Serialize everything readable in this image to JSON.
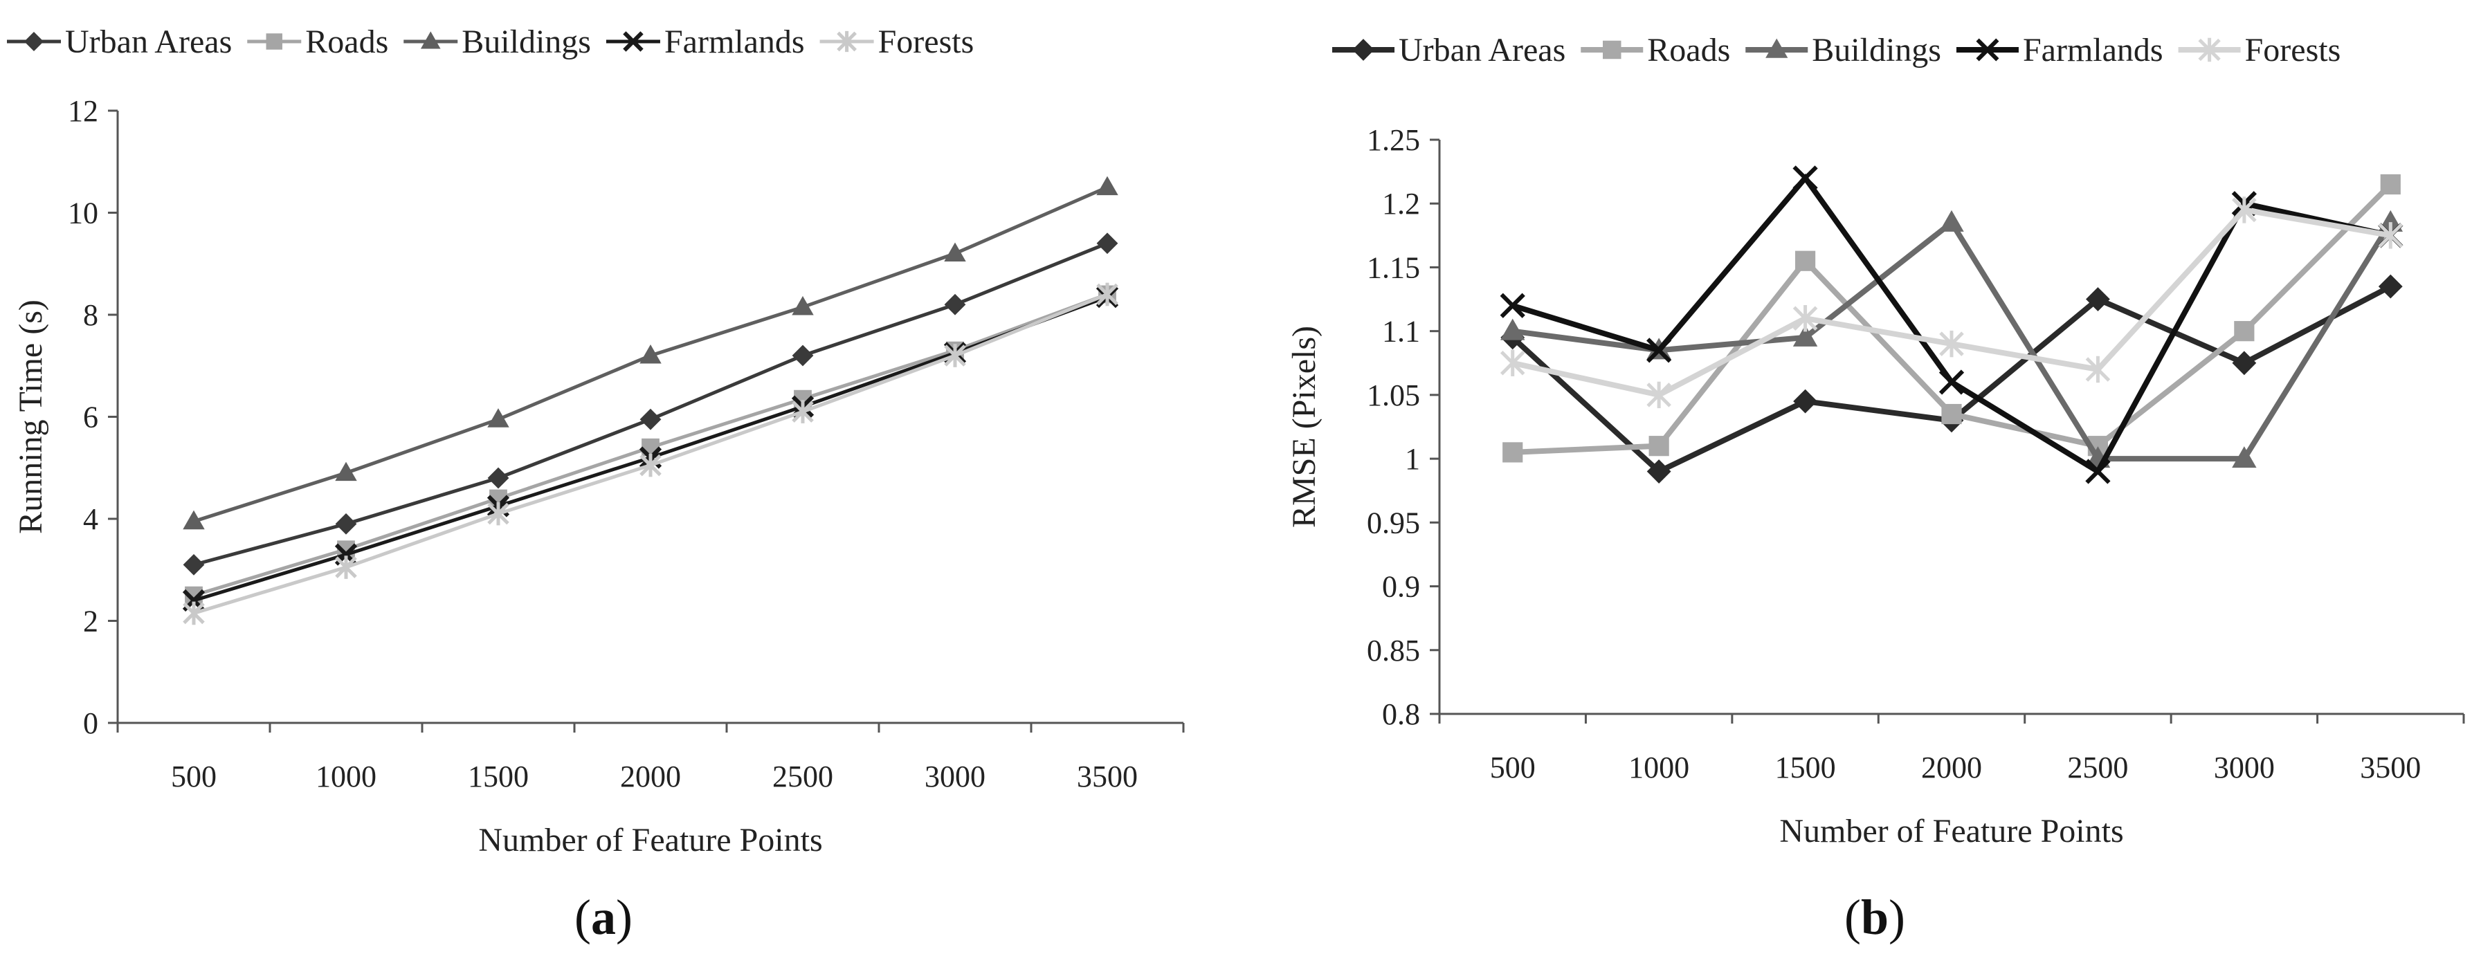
{
  "panel_labels": {
    "a": "a",
    "b": "b"
  },
  "chart_data": [
    {
      "type": "line",
      "panel": "a",
      "xlabel": "Number of Feature Points",
      "ylabel": "Running Time (s)",
      "x": [
        500,
        1000,
        1500,
        2000,
        2500,
        3000,
        3500
      ],
      "ylim": [
        0,
        12
      ],
      "yticks": [
        0,
        2,
        4,
        6,
        8,
        10,
        12
      ],
      "grid": false,
      "legend_position": "top",
      "series": [
        {
          "name": "Urban Areas",
          "marker": "diamond",
          "color": "#3a3a3a",
          "values": [
            3.1,
            3.9,
            4.8,
            5.95,
            7.2,
            8.2,
            9.4
          ]
        },
        {
          "name": "Roads",
          "marker": "square",
          "color": "#a5a5a5",
          "values": [
            2.5,
            3.4,
            4.4,
            5.4,
            6.35,
            7.3,
            8.4
          ]
        },
        {
          "name": "Buildings",
          "marker": "triangle",
          "color": "#5f5f5f",
          "values": [
            3.95,
            4.9,
            5.95,
            7.2,
            8.15,
            9.2,
            10.5
          ]
        },
        {
          "name": "Farmlands",
          "marker": "x",
          "color": "#1a1a1a",
          "values": [
            2.4,
            3.3,
            4.25,
            5.2,
            6.2,
            7.25,
            8.35
          ]
        },
        {
          "name": "Forests",
          "marker": "star",
          "color": "#c9c9c9",
          "values": [
            2.15,
            3.05,
            4.1,
            5.05,
            6.1,
            7.2,
            8.4
          ]
        }
      ]
    },
    {
      "type": "line",
      "panel": "b",
      "xlabel": "Number of Feature Points",
      "ylabel": "RMSE (Pixels)",
      "x": [
        500,
        1000,
        1500,
        2000,
        2500,
        3000,
        3500
      ],
      "ylim": [
        0.8,
        1.25
      ],
      "yticks": [
        "0.8",
        "0.85",
        "0.9",
        "0.95",
        "1",
        "1.05",
        "1.1",
        "1.15",
        "1.2",
        "1.25"
      ],
      "grid": false,
      "legend_position": "top",
      "series": [
        {
          "name": "Urban Areas",
          "marker": "diamond",
          "color": "#2a2a2a",
          "values": [
            1.095,
            0.99,
            1.045,
            1.03,
            1.125,
            1.075,
            1.135
          ]
        },
        {
          "name": "Roads",
          "marker": "square",
          "color": "#a8a8a8",
          "values": [
            1.005,
            1.01,
            1.155,
            1.035,
            1.01,
            1.1,
            1.215
          ]
        },
        {
          "name": "Buildings",
          "marker": "triangle",
          "color": "#6a6a6a",
          "values": [
            1.1,
            1.085,
            1.095,
            1.185,
            1.0,
            1.0,
            1.185
          ]
        },
        {
          "name": "Farmlands",
          "marker": "x",
          "color": "#111111",
          "values": [
            1.12,
            1.085,
            1.22,
            1.06,
            0.99,
            1.2,
            1.175
          ]
        },
        {
          "name": "Forests",
          "marker": "star",
          "color": "#d4d4d4",
          "values": [
            1.075,
            1.05,
            1.11,
            1.09,
            1.07,
            1.195,
            1.175
          ]
        }
      ]
    }
  ]
}
